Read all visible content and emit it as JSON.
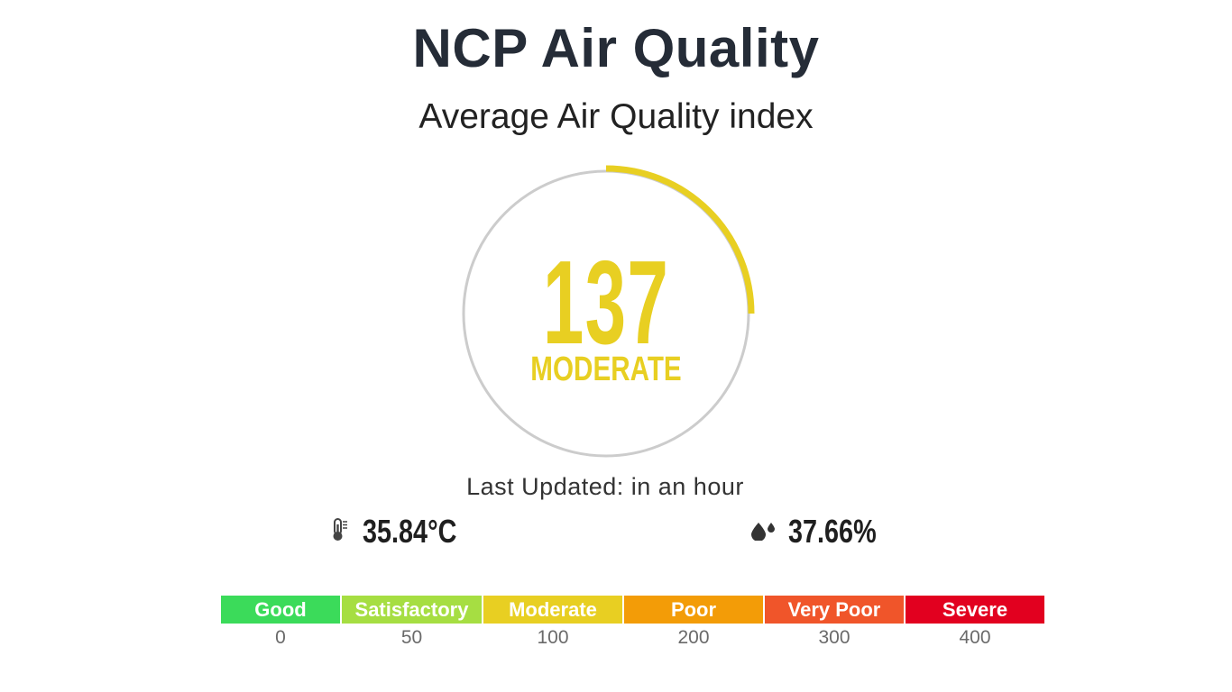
{
  "header": {
    "title": "NCP Air Quality",
    "subtitle": "Average Air Quality index"
  },
  "aqi": {
    "value": "137",
    "category": "MODERATE",
    "arc_fraction": 0.25,
    "color": "#e8cf22",
    "track_color": "#cccccc"
  },
  "last_updated": "Last Updated: in an hour",
  "readings": {
    "temperature": {
      "value": "35.84°C",
      "icon": "thermometer-icon"
    },
    "humidity": {
      "value": "37.66%",
      "icon": "water-drops-icon"
    }
  },
  "scale": [
    {
      "label": "Good",
      "threshold": "0",
      "color": "#3bdb5a"
    },
    {
      "label": "Satisfactory",
      "threshold": "50",
      "color": "#a6de42"
    },
    {
      "label": "Moderate",
      "threshold": "100",
      "color": "#e8cf22"
    },
    {
      "label": "Poor",
      "threshold": "200",
      "color": "#f39c07"
    },
    {
      "label": "Very Poor",
      "threshold": "300",
      "color": "#f0552a"
    },
    {
      "label": "Severe",
      "threshold": "400",
      "color": "#e2001f"
    }
  ]
}
